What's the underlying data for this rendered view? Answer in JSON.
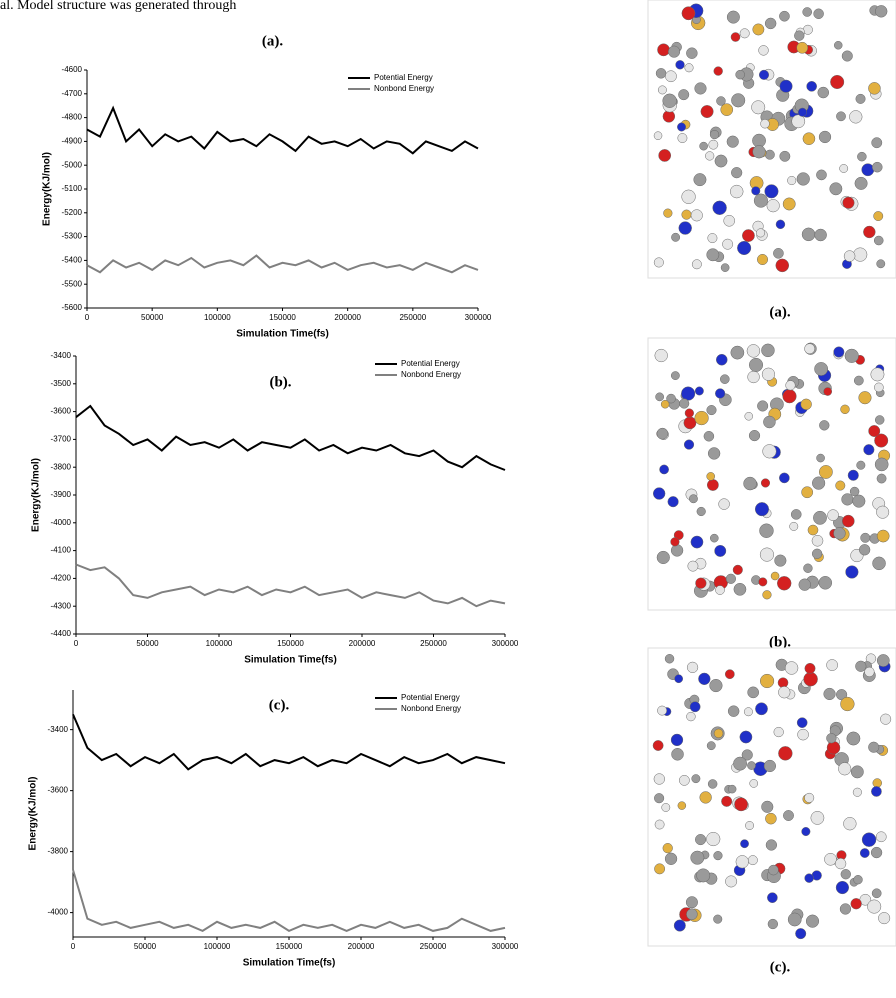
{
  "header_text": "al. Model structure was generated through",
  "chart_data": [
    {
      "type": "line",
      "title": "(a).",
      "x_label": "Simulation Time(fs)",
      "y_label": "Energy(KJ/mol)",
      "x": [
        0,
        10000,
        20000,
        30000,
        40000,
        50000,
        60000,
        70000,
        80000,
        90000,
        100000,
        110000,
        120000,
        130000,
        140000,
        150000,
        160000,
        170000,
        180000,
        190000,
        200000,
        210000,
        220000,
        230000,
        240000,
        250000,
        260000,
        270000,
        280000,
        290000,
        300000
      ],
      "series": [
        {
          "name": "Potential Energy",
          "color": "#000000",
          "values": [
            -4850,
            -4880,
            -4760,
            -4900,
            -4850,
            -4920,
            -4870,
            -4900,
            -4880,
            -4930,
            -4860,
            -4900,
            -4890,
            -4920,
            -4870,
            -4900,
            -4940,
            -4880,
            -4910,
            -4900,
            -4920,
            -4890,
            -4930,
            -4900,
            -4910,
            -4950,
            -4900,
            -4920,
            -4940,
            -4900,
            -4930
          ]
        },
        {
          "name": "Nonbond Energy",
          "color": "#808080",
          "values": [
            -5420,
            -5450,
            -5400,
            -5430,
            -5410,
            -5440,
            -5400,
            -5420,
            -5390,
            -5430,
            -5410,
            -5400,
            -5420,
            -5380,
            -5430,
            -5410,
            -5420,
            -5400,
            -5430,
            -5410,
            -5440,
            -5420,
            -5410,
            -5430,
            -5420,
            -5440,
            -5410,
            -5430,
            -5450,
            -5420,
            -5440
          ]
        }
      ],
      "xlim": [
        0,
        300000
      ],
      "xticks": [
        0,
        50000,
        100000,
        150000,
        200000,
        250000,
        300000
      ],
      "ylim": [
        -5600,
        -4600
      ],
      "yticks": [
        -4600,
        -4700,
        -4800,
        -4900,
        -5000,
        -5100,
        -5200,
        -5300,
        -5400,
        -5500,
        -5600
      ],
      "legend": "upper right",
      "image_label": "(a)."
    },
    {
      "type": "line",
      "title": "(b).",
      "x_label": "Simulation Time(fs)",
      "y_label": "Energy(KJ/mol)",
      "x": [
        0,
        10000,
        20000,
        30000,
        40000,
        50000,
        60000,
        70000,
        80000,
        90000,
        100000,
        110000,
        120000,
        130000,
        140000,
        150000,
        160000,
        170000,
        180000,
        190000,
        200000,
        210000,
        220000,
        230000,
        240000,
        250000,
        260000,
        270000,
        280000,
        290000,
        300000
      ],
      "series": [
        {
          "name": "Potential Energy",
          "color": "#000000",
          "values": [
            -3620,
            -3580,
            -3650,
            -3680,
            -3720,
            -3700,
            -3740,
            -3690,
            -3720,
            -3710,
            -3730,
            -3700,
            -3740,
            -3710,
            -3720,
            -3730,
            -3700,
            -3740,
            -3720,
            -3750,
            -3730,
            -3740,
            -3720,
            -3750,
            -3760,
            -3740,
            -3780,
            -3800,
            -3760,
            -3790,
            -3810
          ]
        },
        {
          "name": "Nonbond Energy",
          "color": "#808080",
          "values": [
            -4150,
            -4170,
            -4160,
            -4200,
            -4260,
            -4270,
            -4250,
            -4240,
            -4230,
            -4260,
            -4240,
            -4250,
            -4230,
            -4260,
            -4240,
            -4250,
            -4230,
            -4260,
            -4250,
            -4240,
            -4270,
            -4250,
            -4260,
            -4270,
            -4250,
            -4280,
            -4290,
            -4270,
            -4300,
            -4280,
            -4290
          ]
        }
      ],
      "xlim": [
        0,
        300000
      ],
      "xticks": [
        0,
        50000,
        100000,
        150000,
        200000,
        250000,
        300000
      ],
      "ylim": [
        -4400,
        -3400
      ],
      "yticks": [
        -3400,
        -3500,
        -3600,
        -3700,
        -3800,
        -3900,
        -4000,
        -4100,
        -4200,
        -4300,
        -4400
      ],
      "legend": "upper right",
      "image_label": "(b)."
    },
    {
      "type": "line",
      "title": "(c).",
      "x_label": "Simulation Time(fs)",
      "y_label": "Energy(KJ/mol)",
      "x": [
        0,
        10000,
        20000,
        30000,
        40000,
        50000,
        60000,
        70000,
        80000,
        90000,
        100000,
        110000,
        120000,
        130000,
        140000,
        150000,
        160000,
        170000,
        180000,
        190000,
        200000,
        210000,
        220000,
        230000,
        240000,
        250000,
        260000,
        270000,
        280000,
        290000,
        300000
      ],
      "series": [
        {
          "name": "Potential Energy",
          "color": "#000000",
          "values": [
            -3350,
            -3460,
            -3500,
            -3480,
            -3520,
            -3490,
            -3510,
            -3480,
            -3530,
            -3500,
            -3490,
            -3510,
            -3480,
            -3520,
            -3500,
            -3510,
            -3490,
            -3520,
            -3500,
            -3510,
            -3480,
            -3500,
            -3520,
            -3490,
            -3510,
            -3500,
            -3480,
            -3510,
            -3490,
            -3500,
            -3510
          ]
        },
        {
          "name": "Nonbond Energy",
          "color": "#808080",
          "values": [
            -3860,
            -4020,
            -4040,
            -4030,
            -4050,
            -4040,
            -4030,
            -4050,
            -4040,
            -4060,
            -4030,
            -4050,
            -4040,
            -4050,
            -4030,
            -4060,
            -4040,
            -4050,
            -4040,
            -4060,
            -4040,
            -4050,
            -4030,
            -4050,
            -4040,
            -4060,
            -4050,
            -4020,
            -4040,
            -4060,
            -4050
          ]
        }
      ],
      "xlim": [
        0,
        300000
      ],
      "xticks": [
        0,
        50000,
        100000,
        150000,
        200000,
        250000,
        300000
      ],
      "ylim": [
        -4080,
        -3270
      ],
      "yticks": [
        -3400,
        -3600,
        -3800,
        -4000
      ],
      "legend": "upper right",
      "image_label": "(c)."
    }
  ]
}
